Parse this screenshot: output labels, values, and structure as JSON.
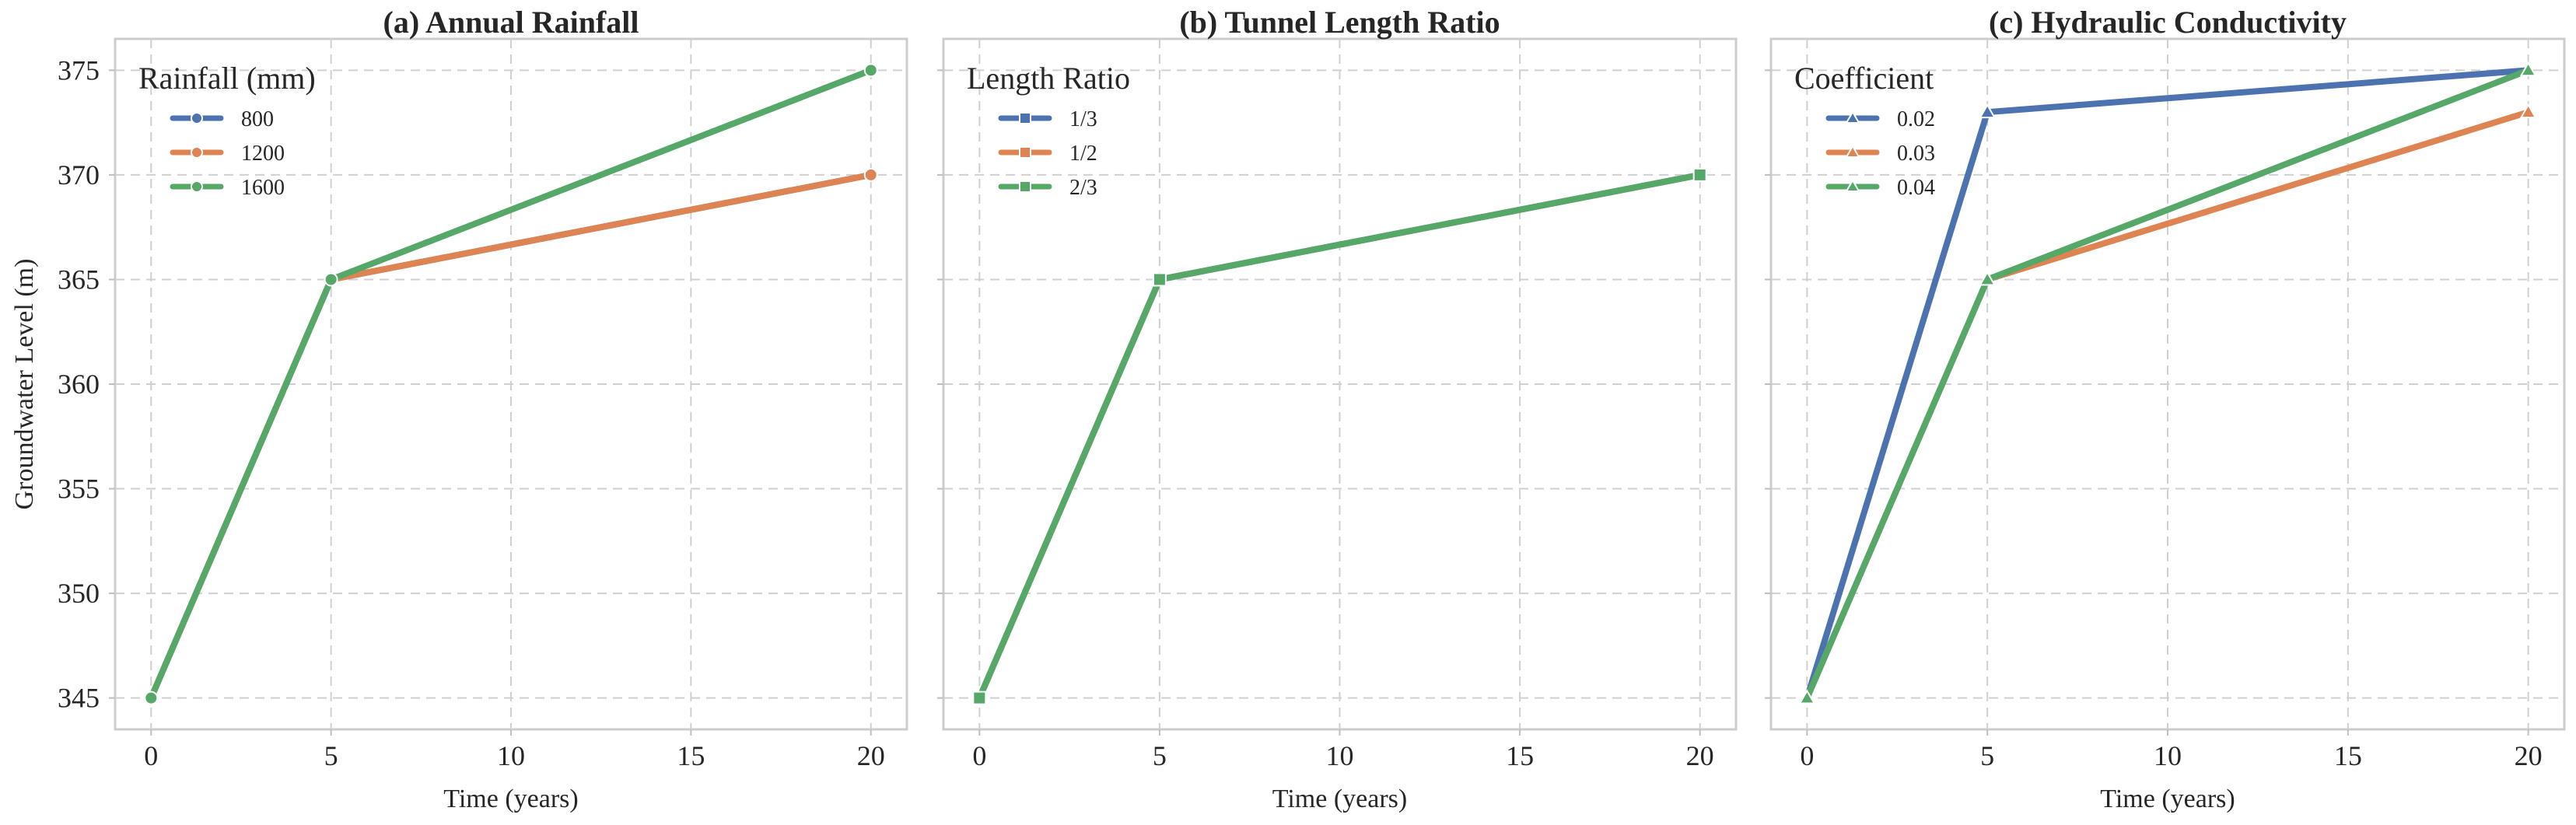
{
  "chart_data": [
    {
      "type": "line",
      "title": "(a) Annual Rainfall",
      "xlabel": "Time (years)",
      "ylabel": "Groundwater Level (m)",
      "xlim": [
        -1,
        21
      ],
      "ylim": [
        343.5,
        376.5
      ],
      "xticks": [
        0,
        5,
        10,
        15,
        20
      ],
      "yticks": [
        345,
        350,
        355,
        360,
        365,
        370,
        375
      ],
      "grid": true,
      "marker": "circle",
      "legend": {
        "title": "Rainfall (mm)",
        "placement": "top-left"
      },
      "x": [
        0,
        5,
        20
      ],
      "series": [
        {
          "name": "800",
          "color": "#4C72B0",
          "values": [
            345,
            365,
            370
          ]
        },
        {
          "name": "1200",
          "color": "#DD8452",
          "values": [
            345,
            365,
            370
          ]
        },
        {
          "name": "1600",
          "color": "#55A868",
          "values": [
            345,
            365,
            375
          ]
        }
      ]
    },
    {
      "type": "line",
      "title": "(b) Tunnel Length Ratio",
      "xlabel": "Time (years)",
      "ylabel": "",
      "xlim": [
        -1,
        21
      ],
      "ylim": [
        343.5,
        376.5
      ],
      "xticks": [
        0,
        5,
        10,
        15,
        20
      ],
      "yticks": [
        345,
        350,
        355,
        360,
        365,
        370,
        375
      ],
      "grid": true,
      "marker": "square",
      "legend": {
        "title": "Length Ratio",
        "placement": "top-left"
      },
      "x": [
        0,
        5,
        20
      ],
      "series": [
        {
          "name": "1/3",
          "color": "#4C72B0",
          "values": [
            345,
            365,
            370
          ]
        },
        {
          "name": "1/2",
          "color": "#DD8452",
          "values": [
            345,
            365,
            370
          ]
        },
        {
          "name": "2/3",
          "color": "#55A868",
          "values": [
            345,
            365,
            370
          ]
        }
      ]
    },
    {
      "type": "line",
      "title": "(c) Hydraulic Conductivity",
      "xlabel": "Time (years)",
      "ylabel": "",
      "xlim": [
        -1,
        21
      ],
      "ylim": [
        343.5,
        376.5
      ],
      "xticks": [
        0,
        5,
        10,
        15,
        20
      ],
      "yticks": [
        345,
        350,
        355,
        360,
        365,
        370,
        375
      ],
      "grid": true,
      "marker": "triangle",
      "legend": {
        "title": "Coefficient",
        "placement": "top-left"
      },
      "x": [
        0,
        5,
        20
      ],
      "series": [
        {
          "name": "0.02",
          "color": "#4C72B0",
          "values": [
            345,
            373,
            375
          ]
        },
        {
          "name": "0.03",
          "color": "#DD8452",
          "values": [
            345,
            365,
            373
          ]
        },
        {
          "name": "0.04",
          "color": "#55A868",
          "values": [
            345,
            365,
            375
          ]
        }
      ]
    }
  ]
}
